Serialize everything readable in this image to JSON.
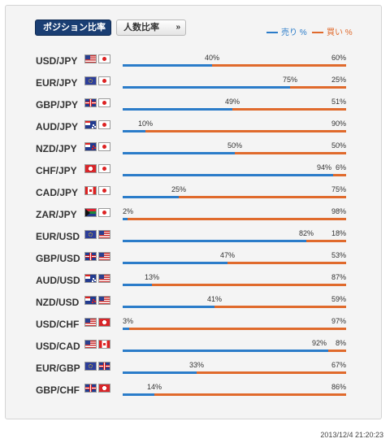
{
  "tabs": {
    "position_label": "ポジション比率",
    "position_chevron": "»",
    "count_label": "人数比率",
    "count_chevron": "»"
  },
  "legend": {
    "sell_label": "売り %",
    "buy_label": "買い %"
  },
  "colors": {
    "sell": "#2b7cc9",
    "buy": "#e06a2c",
    "tab_active": "#1a3e73"
  },
  "chart_data": {
    "type": "bar",
    "categories": [
      "USD/JPY",
      "EUR/JPY",
      "GBP/JPY",
      "AUD/JPY",
      "NZD/JPY",
      "CHF/JPY",
      "CAD/JPY",
      "ZAR/JPY",
      "EUR/USD",
      "GBP/USD",
      "AUD/USD",
      "NZD/USD",
      "USD/CHF",
      "USD/CAD",
      "EUR/GBP",
      "GBP/CHF"
    ],
    "series": [
      {
        "name": "売り %",
        "values": [
          40,
          75,
          49,
          10,
          50,
          94,
          25,
          2,
          82,
          47,
          13,
          41,
          3,
          92,
          33,
          14
        ]
      },
      {
        "name": "買い %",
        "values": [
          60,
          25,
          51,
          90,
          50,
          6,
          75,
          98,
          18,
          53,
          87,
          59,
          97,
          8,
          67,
          86
        ]
      }
    ],
    "ylim": [
      0,
      100
    ],
    "stacked": true,
    "orientation": "horizontal"
  },
  "pairs": [
    {
      "name": "USD/JPY",
      "flags": [
        "us",
        "jp"
      ],
      "sell": 40,
      "buy": 60
    },
    {
      "name": "EUR/JPY",
      "flags": [
        "eu",
        "jp"
      ],
      "sell": 75,
      "buy": 25
    },
    {
      "name": "GBP/JPY",
      "flags": [
        "gb",
        "jp"
      ],
      "sell": 49,
      "buy": 51
    },
    {
      "name": "AUD/JPY",
      "flags": [
        "au",
        "jp"
      ],
      "sell": 10,
      "buy": 90
    },
    {
      "name": "NZD/JPY",
      "flags": [
        "nz",
        "jp"
      ],
      "sell": 50,
      "buy": 50
    },
    {
      "name": "CHF/JPY",
      "flags": [
        "ch",
        "jp"
      ],
      "sell": 94,
      "buy": 6
    },
    {
      "name": "CAD/JPY",
      "flags": [
        "ca",
        "jp"
      ],
      "sell": 25,
      "buy": 75
    },
    {
      "name": "ZAR/JPY",
      "flags": [
        "za",
        "jp"
      ],
      "sell": 2,
      "buy": 98
    },
    {
      "name": "EUR/USD",
      "flags": [
        "eu",
        "us"
      ],
      "sell": 82,
      "buy": 18
    },
    {
      "name": "GBP/USD",
      "flags": [
        "gb",
        "us"
      ],
      "sell": 47,
      "buy": 53
    },
    {
      "name": "AUD/USD",
      "flags": [
        "au",
        "us"
      ],
      "sell": 13,
      "buy": 87
    },
    {
      "name": "NZD/USD",
      "flags": [
        "nz",
        "us"
      ],
      "sell": 41,
      "buy": 59
    },
    {
      "name": "USD/CHF",
      "flags": [
        "us",
        "ch"
      ],
      "sell": 3,
      "buy": 97
    },
    {
      "name": "USD/CAD",
      "flags": [
        "us",
        "ca"
      ],
      "sell": 92,
      "buy": 8
    },
    {
      "name": "EUR/GBP",
      "flags": [
        "eu",
        "gb"
      ],
      "sell": 33,
      "buy": 67
    },
    {
      "name": "GBP/CHF",
      "flags": [
        "gb",
        "ch"
      ],
      "sell": 14,
      "buy": 86
    }
  ],
  "timestamp": "2013/12/4 21:20:23"
}
